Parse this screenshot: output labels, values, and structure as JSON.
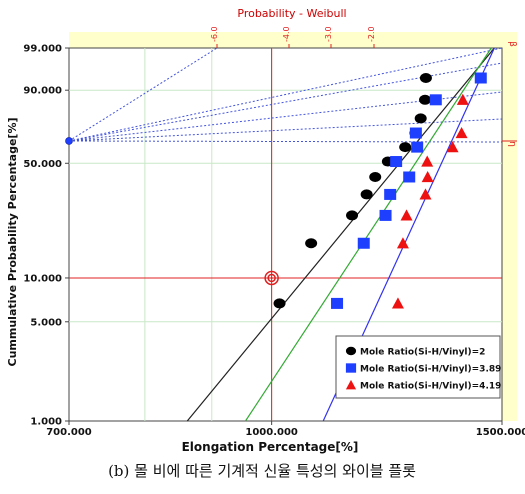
{
  "title": "Probability - Weibull",
  "caption": "(b) 몰 비에 따른 기계적 신율 특성의 와이블 플롯",
  "colors": {
    "title": "#cc0000",
    "panel": "#ffffcc",
    "red_line": "#e02020",
    "grid_major": "#c8e8c8",
    "dotted": "#4455dd",
    "fit_black": "#222222",
    "fit_green": "#33aa33",
    "fit_blue": "#3333ee"
  },
  "chart_data": {
    "type": "scatter",
    "title": "Probability - Weibull",
    "xlabel": "Elongation Percentage[%]",
    "ylabel": "Cummulative Probability Percentage[%]",
    "xlim": [
      700,
      1500
    ],
    "ylim": [
      1,
      99
    ],
    "x_scale": "log",
    "y_scale": "weibull",
    "x_ticks": [
      {
        "value": 700,
        "label": "700.000"
      },
      {
        "value": 1000,
        "label": "1000.000"
      },
      {
        "value": 1500,
        "label": "1500.000"
      }
    ],
    "y_ticks": [
      {
        "value": 1,
        "label": "1.000"
      },
      {
        "value": 5,
        "label": "5.000"
      },
      {
        "value": 10,
        "label": "10.000"
      },
      {
        "value": 50,
        "label": "50.000"
      },
      {
        "value": 90,
        "label": "90.000"
      },
      {
        "value": 99,
        "label": "99.000"
      }
    ],
    "top_ticks": [
      "-6.0",
      "-4.0",
      "-3.0",
      "-2.0"
    ],
    "right_labels": [
      "β",
      "η"
    ],
    "reference": {
      "x": 1000,
      "y": 10
    },
    "pivot": {
      "x": 700,
      "y": 63.2
    },
    "legend_position": "bottom-right",
    "series": [
      {
        "name": "Mole Ratio(Si-H/Vinyl)=2",
        "marker": "circle",
        "color": "#000000",
        "points": [
          [
            1014,
            6.7
          ],
          [
            1072,
            17.0
          ],
          [
            1152,
            25.5
          ],
          [
            1182,
            34.0
          ],
          [
            1200,
            42.5
          ],
          [
            1227,
            51.0
          ],
          [
            1265,
            59.5
          ],
          [
            1288,
            68.0
          ],
          [
            1300,
            76.5
          ],
          [
            1310,
            86.0
          ],
          [
            1312,
            94.0
          ]
        ],
        "fit": [
          [
            862,
            1
          ],
          [
            1480,
            99
          ]
        ]
      },
      {
        "name": "Mole Ratio(Si-H/Vinyl)=3.89",
        "marker": "square",
        "color": "#1f3fff",
        "points": [
          [
            1122,
            6.7
          ],
          [
            1176,
            17.0
          ],
          [
            1222,
            25.5
          ],
          [
            1232,
            34.0
          ],
          [
            1274,
            42.5
          ],
          [
            1245,
            51.0
          ],
          [
            1292,
            59.5
          ],
          [
            1289,
            68.0
          ],
          [
            1335,
            86.0
          ],
          [
            1445,
            94.0
          ]
        ],
        "fit": [
          [
            955,
            1
          ],
          [
            1472,
            99
          ]
        ]
      },
      {
        "name": "Mole Ratio(Si-H/Vinyl)=4.19",
        "marker": "triangle",
        "color": "#ee1111",
        "points": [
          [
            1249,
            6.7
          ],
          [
            1260,
            17.0
          ],
          [
            1268,
            25.5
          ],
          [
            1311,
            34.0
          ],
          [
            1316,
            42.5
          ],
          [
            1315,
            51.0
          ],
          [
            1375,
            59.5
          ],
          [
            1397,
            68.0
          ],
          [
            1400,
            86.0
          ]
        ],
        "fit": [
          [
            1095,
            1
          ],
          [
            1480,
            99
          ]
        ]
      }
    ]
  }
}
